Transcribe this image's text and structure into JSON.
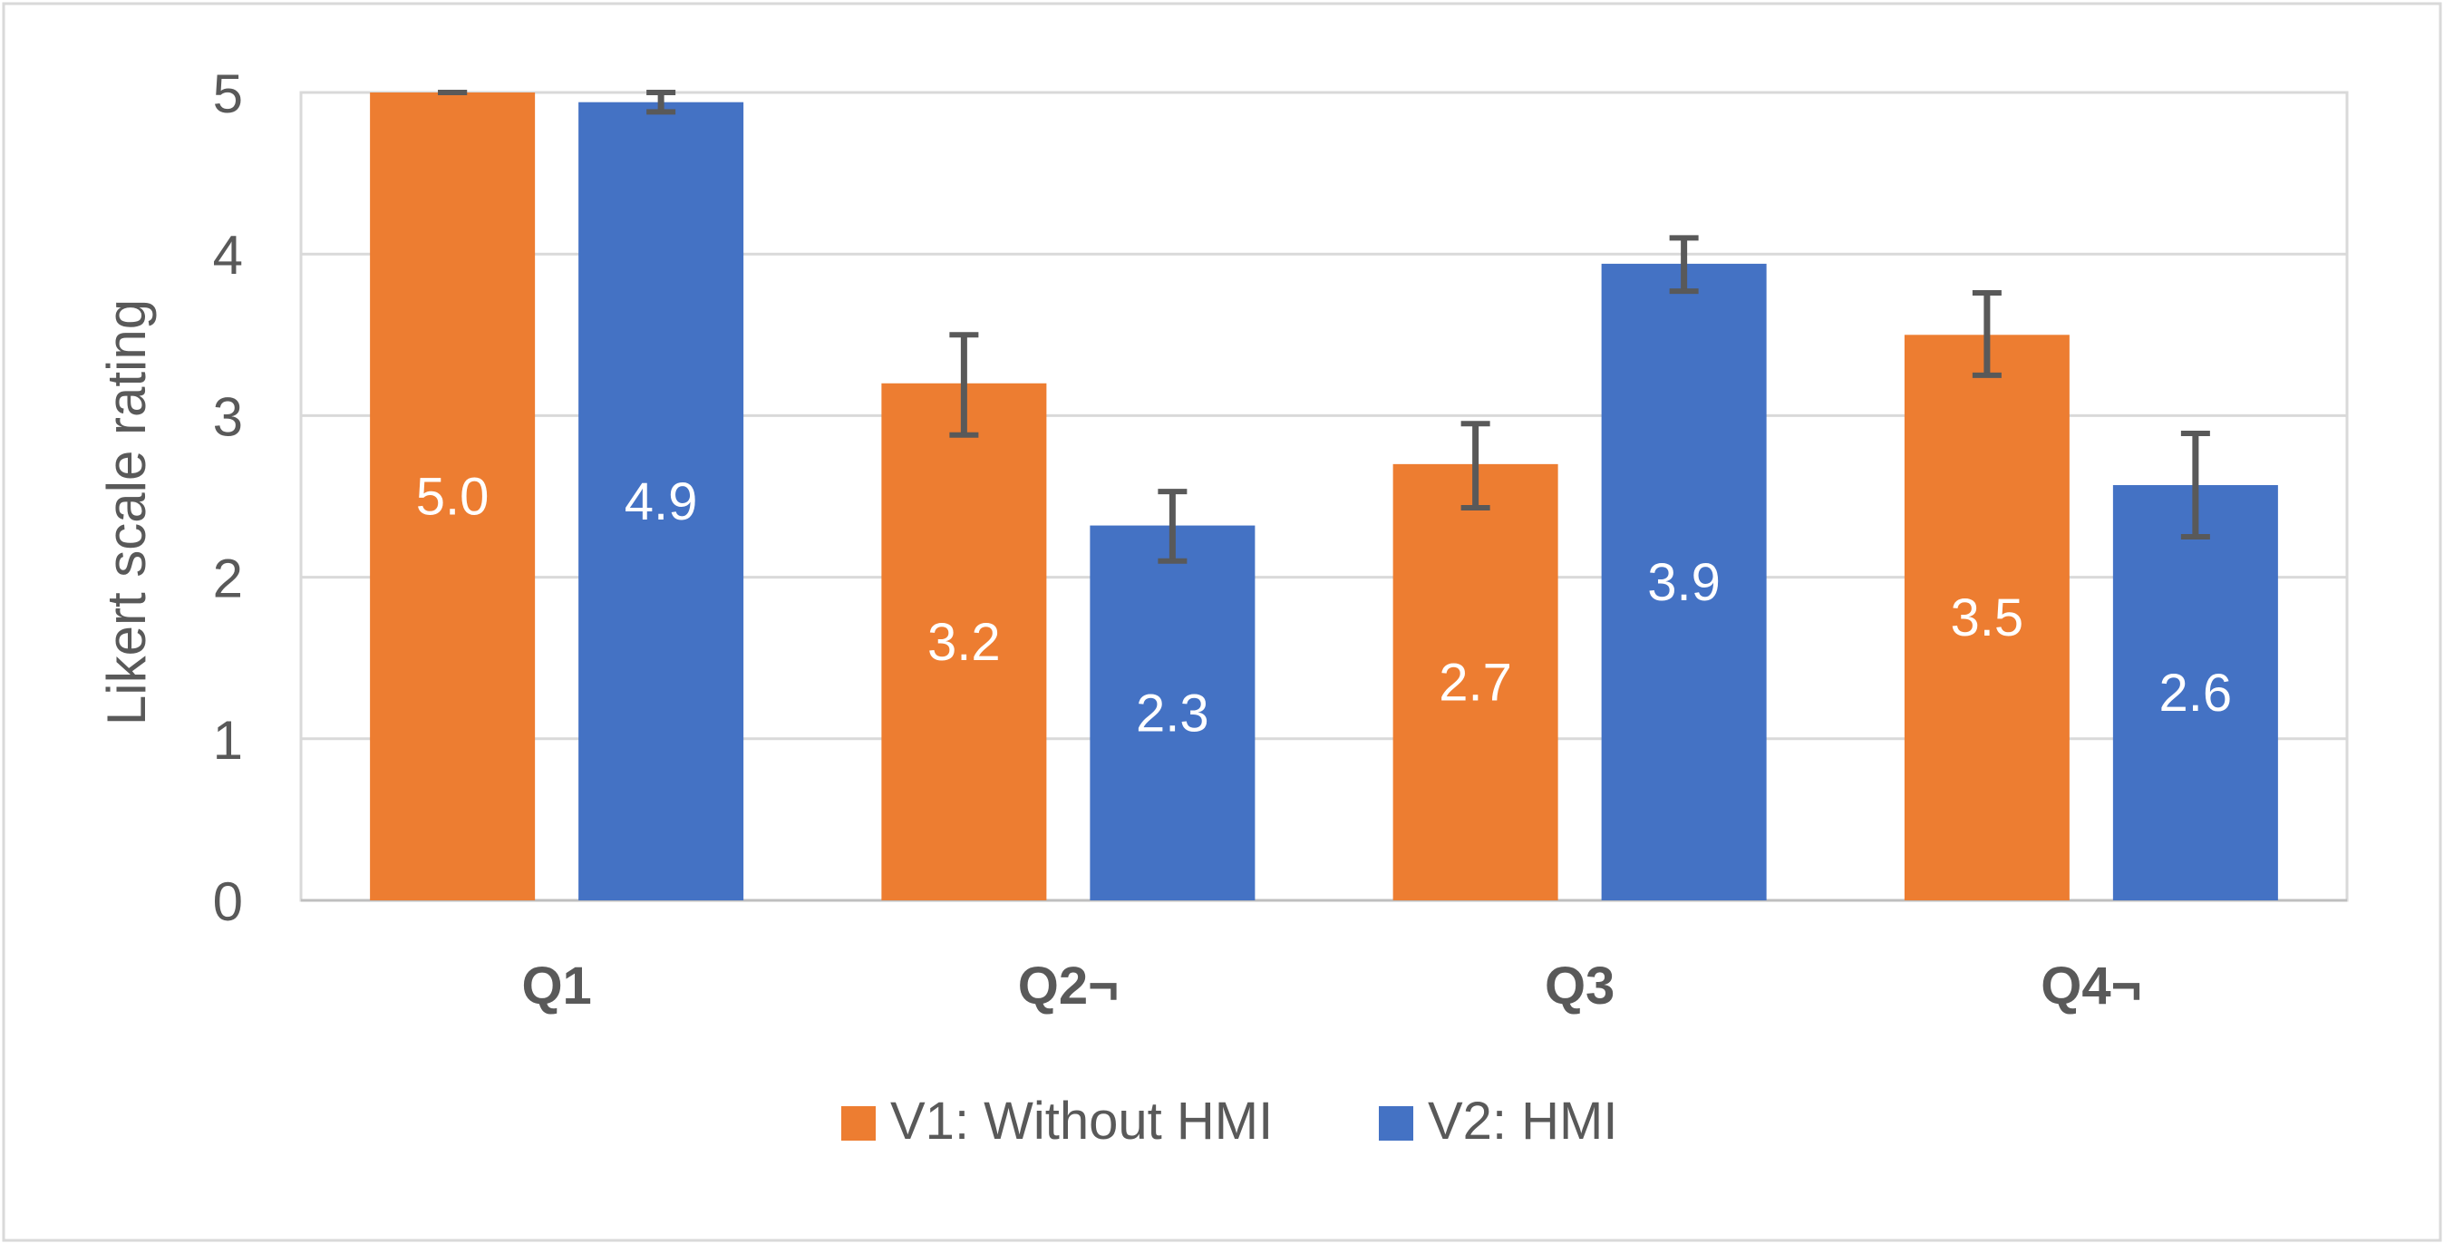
{
  "chart_data": {
    "type": "bar",
    "title": "",
    "xlabel": "",
    "ylabel": "Likert scale rating",
    "ylim": [
      0,
      5
    ],
    "yticks": [
      "0",
      "1",
      "2",
      "3",
      "4",
      "5"
    ],
    "grid": true,
    "legend_position": "bottom-center",
    "categories": [
      "Q1",
      "Q2¬",
      "Q3",
      "Q4¬"
    ],
    "series": [
      {
        "name": "V1: Without HMI",
        "color": "#ED7D31",
        "values": [
          5.0,
          3.2,
          2.7,
          3.5
        ],
        "labels": [
          "5.0",
          "3.2",
          "2.7",
          "3.5"
        ],
        "error_low": [
          5.0,
          2.88,
          2.43,
          3.25
        ],
        "error_high": [
          5.0,
          3.5,
          2.95,
          3.76
        ]
      },
      {
        "name": "V2: HMI",
        "color": "#4472C4",
        "values": [
          4.94,
          2.32,
          3.94,
          2.57
        ],
        "labels": [
          "4.9",
          "2.3",
          "3.9",
          "2.6"
        ],
        "error_low": [
          4.88,
          2.1,
          3.77,
          2.25
        ],
        "error_high": [
          5.0,
          2.53,
          4.1,
          2.89
        ]
      }
    ],
    "colors": {
      "grid": "#D9D9D9",
      "axis": "#BFBFBF",
      "text": "#595959",
      "error_bar": "#595959",
      "bar_label": "#FFFFFF",
      "frame": "#D9D9D9"
    }
  }
}
